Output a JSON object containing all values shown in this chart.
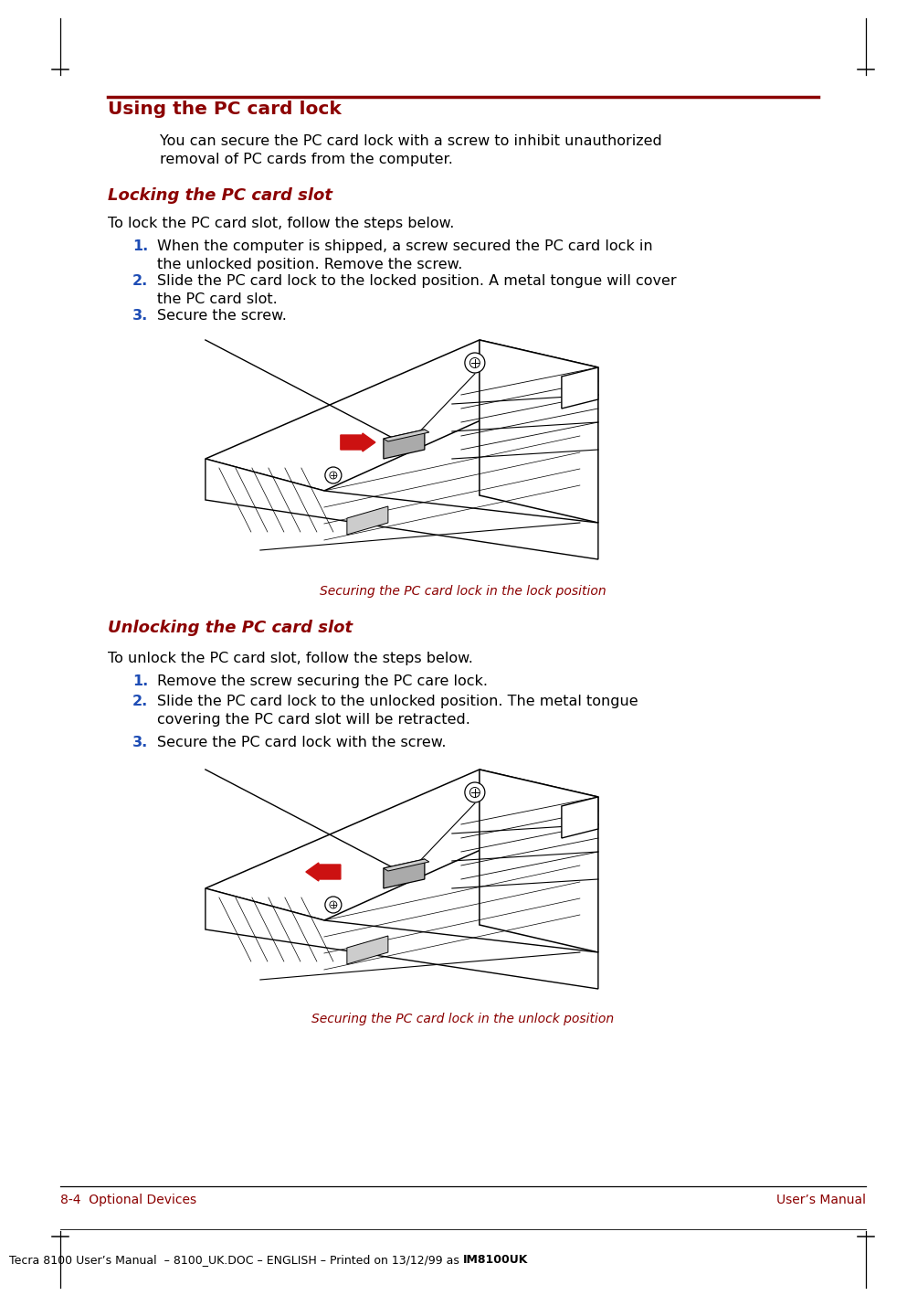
{
  "page_bg": "#ffffff",
  "dark_red": "#8B0000",
  "blue_num": "#1E4DB5",
  "red_arrow": "#CC1111",
  "black": "#000000",
  "dark_gray": "#555555",
  "mid_gray": "#888888",
  "light_gray": "#bbbbbb",
  "title": "Using the PC card lock",
  "subtitle1": "Locking the PC card slot",
  "subtitle2": "Unlocking the PC card slot",
  "intro_line1": "You can secure the PC card lock with a screw to inhibit unauthorized",
  "intro_line2": "removal of PC cards from the computer.",
  "lock_intro": "To lock the PC card slot, follow the steps below.",
  "unlock_intro": "To unlock the PC card slot, follow the steps below.",
  "lock_steps": [
    [
      "When the computer is shipped, a screw secured the PC card lock in",
      "the unlocked position. Remove the screw."
    ],
    [
      "Slide the PC card lock to the locked position. A metal tongue will cover",
      "the PC card slot."
    ],
    [
      "Secure the screw."
    ]
  ],
  "unlock_steps": [
    [
      "Remove the screw securing the PC care lock."
    ],
    [
      "Slide the PC card lock to the unlocked position. The metal tongue",
      "covering the PC card slot will be retracted."
    ],
    [
      "Secure the PC card lock with the screw."
    ]
  ],
  "caption1": "Securing the PC card lock in the lock position",
  "caption2": "Securing the PC card lock in the unlock position",
  "footer_left": "8-4  Optional Devices",
  "footer_right": "User’s Manual",
  "footer_bottom_pre": "Tecra 8100 User’s Manual  – 8100_UK.DOC – ENGLISH – Printed on 13/12/99 as ",
  "footer_bottom_bold": "IM8100UK"
}
